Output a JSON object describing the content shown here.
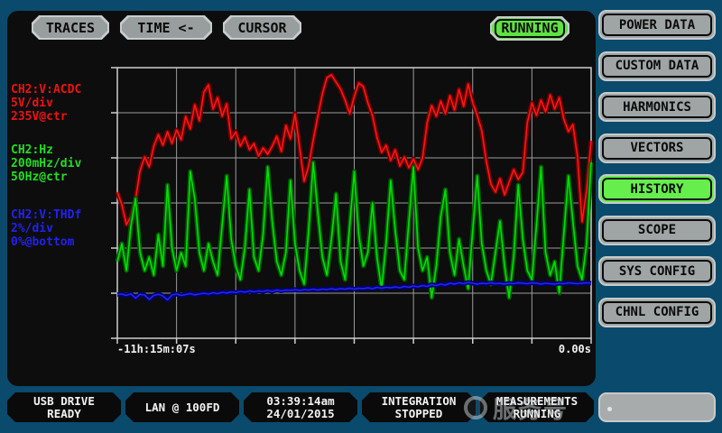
{
  "colors": {
    "background": "#0a4a6c",
    "panel": "#0d0d0d",
    "button_grey": "#9fa5a5",
    "active_green": "#66ee4d",
    "running_green": "#5fe342",
    "grid": "#9b9b9b",
    "grid_border": "#cfcfcf",
    "text_white": "#f2f2f2"
  },
  "header": {
    "buttons": [
      {
        "label": "TRACES"
      },
      {
        "label": "TIME <-"
      },
      {
        "label": "CURSOR"
      }
    ],
    "run_status": "RUNNING"
  },
  "menu": {
    "items": [
      {
        "label": "POWER DATA",
        "active": false
      },
      {
        "label": "CUSTOM DATA",
        "active": false
      },
      {
        "label": "HARMONICS",
        "active": false
      },
      {
        "label": "VECTORS",
        "active": false
      },
      {
        "label": "HISTORY",
        "active": true
      },
      {
        "label": "SCOPE",
        "active": false
      },
      {
        "label": "SYS CONFIG",
        "active": false
      },
      {
        "label": "CHNL CONFIG",
        "active": false
      }
    ]
  },
  "channels": [
    {
      "name": "CH2:V:ACDC",
      "scale": "5V/div",
      "ref": "235V@ctr",
      "color": "#ee1111"
    },
    {
      "name": "CH2:Hz",
      "scale": "200mHz/div",
      "ref": "50Hz@ctr",
      "color": "#22dd22"
    },
    {
      "name": "CH2:V:THDf",
      "scale": "2%/div",
      "ref": "0%@bottom",
      "color": "#2222ee"
    }
  ],
  "chart_data": {
    "type": "line",
    "title": "",
    "xlabel": "time",
    "x_start_label": "-11h:15m:07s",
    "x_end_label": "0.00s",
    "grid": {
      "cols": 8,
      "rows": 6,
      "on": true
    },
    "series": [
      {
        "name": "CH2:V:ACDC",
        "unit": "V",
        "per_div": 5,
        "ref": 235,
        "ref_pos": "center",
        "color": "#ff1515",
        "envelope_color": "#6e0000",
        "values": [
          236.2,
          234.8,
          232.6,
          233.5,
          235.4,
          238.6,
          240.1,
          239.0,
          241.3,
          242.6,
          241.4,
          242.9,
          241.6,
          243.1,
          242.0,
          244.6,
          243.2,
          245.9,
          244.1,
          247.3,
          248.1,
          245.4,
          246.7,
          244.6,
          246.0,
          242.1,
          242.9,
          241.3,
          242.3,
          240.9,
          241.6,
          240.2,
          241.1,
          240.4,
          241.3,
          242.4,
          240.7,
          243.6,
          242.1,
          244.9,
          241.2,
          237.4,
          239.1,
          242.0,
          244.6,
          247.1,
          248.9,
          249.2,
          248.4,
          247.6,
          246.4,
          244.9,
          246.8,
          248.3,
          247.9,
          246.1,
          244.7,
          242.3,
          240.6,
          241.4,
          239.7,
          240.9,
          239.1,
          240.1,
          238.9,
          239.9,
          238.7,
          240.0,
          243.9,
          245.8,
          244.6,
          246.3,
          244.9,
          246.9,
          245.3,
          247.6,
          245.7,
          248.2,
          246.1,
          244.7,
          243.0,
          239.6,
          237.1,
          236.2,
          237.7,
          235.9,
          237.3,
          238.7,
          237.6,
          238.4,
          243.9,
          246.1,
          244.7,
          246.4,
          245.1,
          247.0,
          245.4,
          246.7,
          244.3,
          242.9,
          243.7,
          240.1,
          232.9,
          236.4,
          241.9
        ]
      },
      {
        "name": "CH2:Hz",
        "unit": "Hz",
        "per_div": 0.2,
        "ref": 50,
        "ref_pos": "center",
        "color": "#00e000",
        "envelope_color": "#005c00",
        "values": [
          49.74,
          49.82,
          49.7,
          49.9,
          50.02,
          49.78,
          49.7,
          49.76,
          49.68,
          49.86,
          49.72,
          50.08,
          49.8,
          49.7,
          49.78,
          49.72,
          50.14,
          50.02,
          49.78,
          49.7,
          49.82,
          49.74,
          49.68,
          49.9,
          50.12,
          49.84,
          49.72,
          49.66,
          49.8,
          50.06,
          49.76,
          49.7,
          49.86,
          50.16,
          49.92,
          49.74,
          49.68,
          49.78,
          50.1,
          49.82,
          49.7,
          49.64,
          49.88,
          50.18,
          49.96,
          49.76,
          49.68,
          49.84,
          50.04,
          49.74,
          49.66,
          49.9,
          50.14,
          49.86,
          49.72,
          49.78,
          50.0,
          49.76,
          49.62,
          49.82,
          50.1,
          49.88,
          49.7,
          49.66,
          49.92,
          50.16,
          49.8,
          49.7,
          49.76,
          49.58,
          49.72,
          49.94,
          50.06,
          49.78,
          49.68,
          49.84,
          49.72,
          49.62,
          49.88,
          50.12,
          49.82,
          49.7,
          49.64,
          49.78,
          49.92,
          49.72,
          49.58,
          49.76,
          50.08,
          49.84,
          49.7,
          49.66,
          49.9,
          50.16,
          49.78,
          49.68,
          49.74,
          49.6,
          49.86,
          50.12,
          49.92,
          49.72,
          49.66,
          49.82,
          50.18
        ]
      },
      {
        "name": "CH2:V:THDf",
        "unit": "%",
        "per_div": 2,
        "ref": 0,
        "ref_pos": "bottom",
        "color": "#2525ee",
        "envelope_color": "#000078",
        "values": [
          1.94,
          1.96,
          1.9,
          1.97,
          1.78,
          1.95,
          1.92,
          1.72,
          1.9,
          1.95,
          1.88,
          1.7,
          1.92,
          1.96,
          1.9,
          1.94,
          1.98,
          1.92,
          1.96,
          2.0,
          1.96,
          2.02,
          1.98,
          2.04,
          2.0,
          2.06,
          2.02,
          2.08,
          2.04,
          2.1,
          2.06,
          2.1,
          2.08,
          2.12,
          2.08,
          2.14,
          2.1,
          2.14,
          2.12,
          2.16,
          2.12,
          2.16,
          2.14,
          2.18,
          2.14,
          2.18,
          2.16,
          2.2,
          2.16,
          2.2,
          2.18,
          2.22,
          2.18,
          2.22,
          2.2,
          2.24,
          2.2,
          2.26,
          2.22,
          2.26,
          2.24,
          2.28,
          2.24,
          2.3,
          2.26,
          2.32,
          2.28,
          2.34,
          2.3,
          2.38,
          2.34,
          2.4,
          2.36,
          2.44,
          2.4,
          2.46,
          2.42,
          2.48,
          2.44,
          2.4,
          2.44,
          2.42,
          2.46,
          2.42,
          2.44,
          2.4,
          2.44,
          2.42,
          2.46,
          2.44,
          2.42,
          2.46,
          2.44,
          2.4,
          2.44,
          2.42,
          2.4,
          2.44,
          2.42,
          2.46,
          2.44,
          2.42,
          2.44,
          2.46,
          2.44
        ]
      }
    ]
  },
  "statusbar": {
    "cells": [
      {
        "line1": "USB DRIVE",
        "line2": "READY"
      },
      {
        "line1": "LAN @ 100FD",
        "line2": ""
      },
      {
        "line1": "03:39:14am",
        "line2": "24/01/2015"
      },
      {
        "line1": "INTEGRATION",
        "line2": "STOPPED"
      },
      {
        "line1": "MEASUREMENTS",
        "line2": "RUNNING"
      }
    ]
  },
  "watermark": {
    "text": "服务号"
  }
}
